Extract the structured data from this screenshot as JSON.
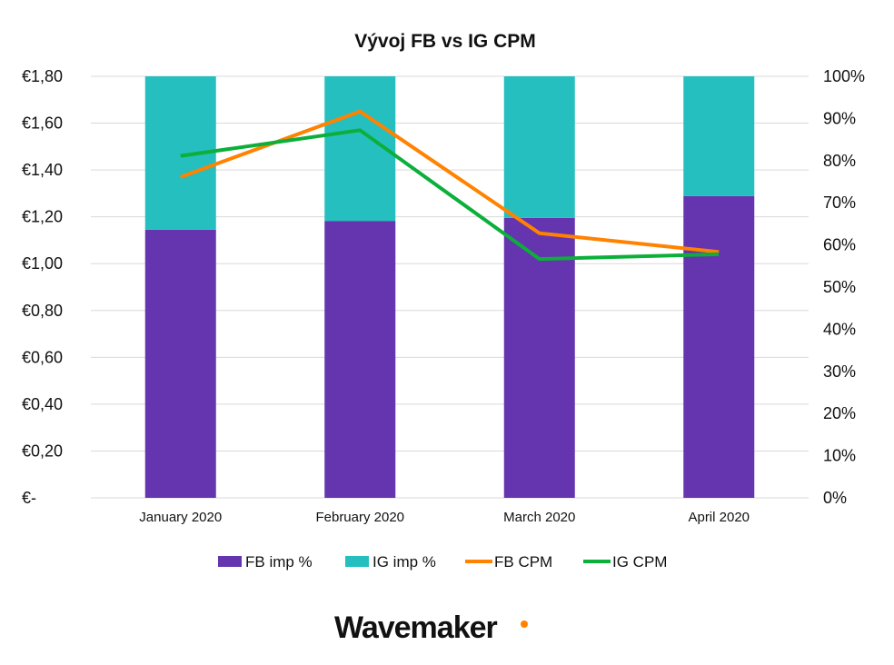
{
  "chart_data": {
    "type": "bar",
    "title": "Vývoj FB vs IG CPM",
    "categories": [
      "January 2020",
      "February 2020",
      "March 2020",
      "April 2020"
    ],
    "y_left": {
      "ticks": [
        "€-",
        "€0,20",
        "€0,40",
        "€0,60",
        "€0,80",
        "€1,00",
        "€1,20",
        "€1,40",
        "€1,60",
        "€1,80"
      ],
      "range": [
        0,
        1.8
      ]
    },
    "y_right": {
      "ticks": [
        "0%",
        "10%",
        "20%",
        "30%",
        "40%",
        "50%",
        "60%",
        "70%",
        "80%",
        "90%",
        "100%"
      ],
      "range": [
        0,
        100
      ]
    },
    "series": [
      {
        "name": "FB imp %",
        "kind": "stacked-bar",
        "axis": "right",
        "color": "#6435AE",
        "values": [
          63.6,
          65.7,
          66.4,
          71.6
        ]
      },
      {
        "name": "IG imp %",
        "kind": "stacked-bar",
        "axis": "right",
        "color": "#26BFBF",
        "values": [
          36.4,
          34.3,
          33.6,
          28.4
        ]
      },
      {
        "name": "FB CPM",
        "kind": "line",
        "axis": "left",
        "color": "#FF8200",
        "values": [
          1.37,
          1.65,
          1.13,
          1.05
        ]
      },
      {
        "name": "IG CPM",
        "kind": "line",
        "axis": "left",
        "color": "#0BAF3A",
        "values": [
          1.46,
          1.57,
          1.02,
          1.04
        ]
      }
    ],
    "grid": true,
    "legend": "bottom"
  },
  "branding": {
    "logo": "Wavemaker",
    "dot_color": "#FF8200"
  }
}
